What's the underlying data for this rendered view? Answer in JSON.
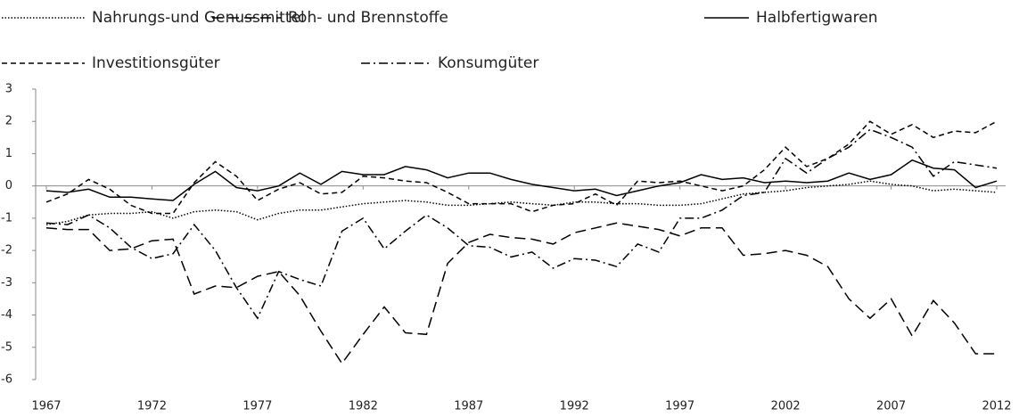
{
  "chart_data": {
    "type": "line",
    "x": [
      1967,
      1968,
      1969,
      1970,
      1971,
      1972,
      1973,
      1974,
      1975,
      1976,
      1977,
      1978,
      1979,
      1980,
      1981,
      1982,
      1983,
      1984,
      1985,
      1986,
      1987,
      1988,
      1989,
      1990,
      1991,
      1992,
      1993,
      1994,
      1995,
      1996,
      1997,
      1998,
      1999,
      2000,
      2001,
      2002,
      2003,
      2004,
      2005,
      2006,
      2007,
      2008,
      2009,
      2010,
      2011,
      2012
    ],
    "xlim": [
      1967,
      2012
    ],
    "xticks": [
      1967,
      1972,
      1977,
      1982,
      1987,
      1992,
      1997,
      2002,
      2007,
      2012
    ],
    "ylim": [
      -6,
      3
    ],
    "yticks": [
      3,
      2,
      1,
      0,
      -1,
      -2,
      -3,
      -4,
      -5,
      -6
    ],
    "series": [
      {
        "name": "Nahrungs-und Genussmittel",
        "color": "#000000",
        "style": "dotted",
        "values": [
          -1.2,
          -1.1,
          -0.9,
          -0.85,
          -0.85,
          -0.8,
          -1.0,
          -0.8,
          -0.75,
          -0.8,
          -1.05,
          -0.85,
          -0.75,
          -0.75,
          -0.65,
          -0.55,
          -0.5,
          -0.45,
          -0.5,
          -0.6,
          -0.6,
          -0.55,
          -0.5,
          -0.55,
          -0.6,
          -0.5,
          -0.5,
          -0.55,
          -0.55,
          -0.6,
          -0.6,
          -0.55,
          -0.4,
          -0.25,
          -0.2,
          -0.15,
          -0.05,
          0,
          0.05,
          0.15,
          0.05,
          0,
          -0.15,
          -0.1,
          -0.15,
          -0.2
        ]
      },
      {
        "name": "Roh- und Brennstoffe",
        "color": "#000000",
        "style": "long-dash",
        "values": [
          -1.3,
          -1.35,
          -1.35,
          -2.0,
          -1.95,
          -1.7,
          -1.65,
          -3.35,
          -3.1,
          -3.15,
          -2.8,
          -2.65,
          -3.4,
          -4.5,
          -5.5,
          -4.6,
          -3.75,
          -4.55,
          -4.6,
          -2.4,
          -1.75,
          -1.5,
          -1.6,
          -1.65,
          -1.8,
          -1.45,
          -1.3,
          -1.15,
          -1.25,
          -1.35,
          -1.55,
          -1.3,
          -1.3,
          -2.15,
          -2.1,
          -2.0,
          -2.15,
          -2.5,
          -3.5,
          -4.1,
          -3.5,
          -4.65,
          -3.55,
          -4.25,
          -5.2,
          -5.2
        ]
      },
      {
        "name": "Halbfertigwaren",
        "color": "#000000",
        "style": "solid",
        "values": [
          -0.15,
          -0.2,
          -0.1,
          -0.35,
          -0.35,
          -0.4,
          -0.45,
          0.05,
          0.45,
          -0.05,
          -0.15,
          0,
          0.4,
          0.05,
          0.45,
          0.35,
          0.35,
          0.6,
          0.5,
          0.25,
          0.4,
          0.4,
          0.2,
          0.05,
          -0.05,
          -0.15,
          -0.1,
          -0.3,
          -0.15,
          0,
          0.1,
          0.35,
          0.2,
          0.25,
          0.1,
          0.15,
          0.1,
          0.15,
          0.4,
          0.2,
          0.35,
          0.8,
          0.55,
          0.5,
          -0.05,
          0.15
        ]
      },
      {
        "name": "Investitionsgüter",
        "color": "#000000",
        "style": "short-dash",
        "values": [
          -0.5,
          -0.25,
          0.2,
          -0.1,
          -0.6,
          -0.85,
          -0.85,
          0.1,
          0.75,
          0.3,
          -0.45,
          -0.1,
          0.1,
          -0.25,
          -0.2,
          0.3,
          0.25,
          0.15,
          0.1,
          -0.2,
          -0.55,
          -0.55,
          -0.55,
          -0.8,
          -0.6,
          -0.55,
          -0.25,
          -0.6,
          0.15,
          0.1,
          0.15,
          0,
          -0.15,
          0,
          0.5,
          1.2,
          0.6,
          0.85,
          1.3,
          2.0,
          1.6,
          1.9,
          1.5,
          1.7,
          1.65,
          2.0
        ]
      },
      {
        "name": "Konsumgüter",
        "color": "#000000",
        "style": "dash-dot",
        "values": [
          -1.15,
          -1.2,
          -0.9,
          -1.3,
          -1.9,
          -2.25,
          -2.1,
          -1.2,
          -2.0,
          -3.15,
          -4.1,
          -2.65,
          -2.9,
          -3.1,
          -1.4,
          -1.0,
          -1.95,
          -1.4,
          -0.9,
          -1.3,
          -1.85,
          -1.9,
          -2.2,
          -2.05,
          -2.55,
          -2.25,
          -2.3,
          -2.5,
          -1.8,
          -2.05,
          -1.0,
          -1.0,
          -0.75,
          -0.3,
          -0.2,
          0.85,
          0.4,
          0.85,
          1.2,
          1.75,
          1.5,
          1.2,
          0.3,
          0.75,
          0.65,
          0.55
        ]
      }
    ]
  }
}
